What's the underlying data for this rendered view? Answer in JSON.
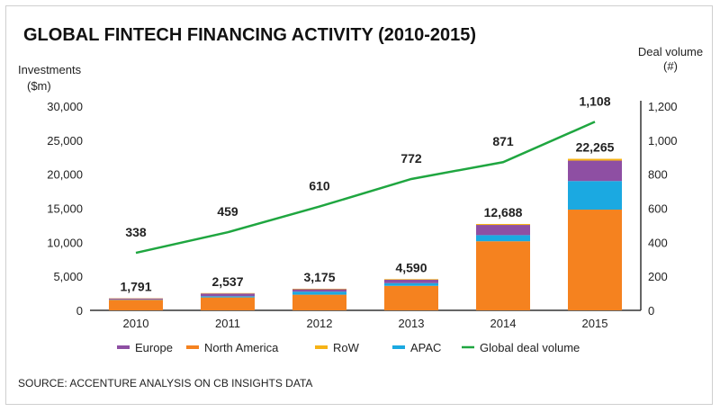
{
  "chart_data": {
    "type": "bar",
    "title": "GLOBAL FINTECH FINANCING ACTIVITY (2010-2015)",
    "ylabel": [
      "Investments",
      "($m)"
    ],
    "y2label": [
      "Deal volume",
      "(#)"
    ],
    "categories": [
      "2010",
      "2011",
      "2012",
      "2013",
      "2014",
      "2015"
    ],
    "ylim": [
      0,
      30000
    ],
    "y_ticks": [
      0,
      5000,
      10000,
      15000,
      20000,
      25000,
      30000
    ],
    "y_tick_labels": [
      "0",
      "5,000",
      "10,000",
      "15,000",
      "20,000",
      "25,000",
      "30,000"
    ],
    "y2lim": [
      0,
      1200
    ],
    "y2_ticks": [
      0,
      200,
      400,
      600,
      800,
      1000,
      1200
    ],
    "y2_tick_labels": [
      "0",
      "200",
      "400",
      "600",
      "800",
      "1,000",
      "1,200"
    ],
    "stack_order": [
      "North America",
      "APAC",
      "Europe",
      "RoW"
    ],
    "series": [
      {
        "name": "Europe",
        "color": "#8e4fa3",
        "values": [
          150,
          400,
          350,
          500,
          1500,
          3000
        ]
      },
      {
        "name": "North America",
        "color": "#f5821f",
        "values": [
          1550,
          1900,
          2300,
          3600,
          10150,
          14800
        ]
      },
      {
        "name": "RoW",
        "color": "#f6b316",
        "values": [
          40,
          60,
          75,
          90,
          138,
          265
        ]
      },
      {
        "name": "APAC",
        "color": "#1ba9e1",
        "values": [
          51,
          177,
          450,
          400,
          900,
          4200
        ]
      }
    ],
    "totals": [
      1791,
      2537,
      3175,
      4590,
      12688,
      22265
    ],
    "total_labels": [
      "1,791",
      "2,537",
      "3,175",
      "4,590",
      "12,688",
      "22,265"
    ],
    "line": {
      "name": "Global deal volume",
      "color": "#1fa640",
      "axis": "right",
      "values": [
        338,
        459,
        610,
        772,
        871,
        1108
      ],
      "labels": [
        "338",
        "459",
        "610",
        "772",
        "871",
        "1,108"
      ]
    },
    "legend": [
      "Europe",
      "North America",
      "RoW",
      "APAC",
      "Global deal volume"
    ],
    "legend_position": "bottom"
  },
  "source": "SOURCE: ACCENTURE ANALYSIS ON CB INSIGHTS DATA"
}
